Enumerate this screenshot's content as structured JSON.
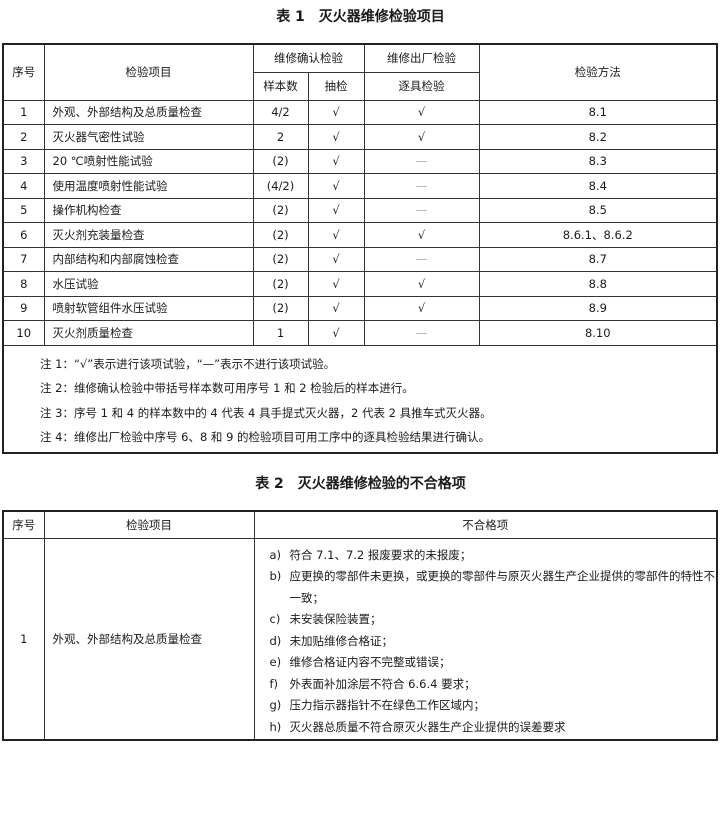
{
  "table1": {
    "title": "表 1　灭火器维修检验项目",
    "headers": {
      "index": "序号",
      "item": "检验项目",
      "confirm_group": "维修确认检验",
      "sample_count": "样本数",
      "sampling": "抽检",
      "release_group": "维修出厂检验",
      "each_unit": "逐具检验",
      "method": "检验方法"
    },
    "rows": [
      {
        "no": "1",
        "item": "外观、外部结构及总质量检查",
        "samples": "4/2",
        "sampling": "√",
        "each": "√",
        "method": "8.1"
      },
      {
        "no": "2",
        "item": "灭火器气密性试验",
        "samples": "2",
        "sampling": "√",
        "each": "√",
        "method": "8.2"
      },
      {
        "no": "3",
        "item": "20 ℃喷射性能试验",
        "samples": "(2)",
        "sampling": "√",
        "each": "—",
        "method": "8.3"
      },
      {
        "no": "4",
        "item": "使用温度喷射性能试验",
        "samples": "(4/2)",
        "sampling": "√",
        "each": "—",
        "method": "8.4"
      },
      {
        "no": "5",
        "item": "操作机构检查",
        "samples": "(2)",
        "sampling": "√",
        "each": "—",
        "method": "8.5"
      },
      {
        "no": "6",
        "item": "灭火剂充装量检查",
        "samples": "(2)",
        "sampling": "√",
        "each": "√",
        "method": "8.6.1、8.6.2"
      },
      {
        "no": "7",
        "item": "内部结构和内部腐蚀检查",
        "samples": "(2)",
        "sampling": "√",
        "each": "—",
        "method": "8.7"
      },
      {
        "no": "8",
        "item": "水压试验",
        "samples": "(2)",
        "sampling": "√",
        "each": "√",
        "method": "8.8"
      },
      {
        "no": "9",
        "item": "喷射软管组件水压试验",
        "samples": "(2)",
        "sampling": "√",
        "each": "√",
        "method": "8.9"
      },
      {
        "no": "10",
        "item": "灭火剂质量检查",
        "samples": "1",
        "sampling": "√",
        "each": "—",
        "method": "8.10"
      }
    ],
    "notes": [
      "注 1：“√”表示进行该项试验，“—”表示不进行该项试验。",
      "注 2：维修确认检验中带括号样本数可用序号 1 和 2 检验后的样本进行。",
      "注 3：序号 1 和 4 的样本数中的 4 代表 4 具手提式灭火器，2 代表 2 具推车式灭火器。",
      "注 4：维修出厂检验中序号 6、8 和 9 的检验项目可用工序中的逐具检验结果进行确认。"
    ]
  },
  "table2": {
    "title": "表 2　灭火器维修检验的不合格项",
    "headers": {
      "index": "序号",
      "item": "检验项目",
      "nonconform": "不合格项"
    },
    "rows": [
      {
        "no": "1",
        "item": "外观、外部结构及总质量检查",
        "entries": [
          {
            "k": "a)",
            "v": "符合 7.1、7.2 报废要求的未报废；"
          },
          {
            "k": "b)",
            "v": "应更换的零部件未更换，或更换的零部件与原灭火器生产企业提供的零部件的特性不一致；"
          },
          {
            "k": "c)",
            "v": "未安装保险装置；"
          },
          {
            "k": "d)",
            "v": "未加贴维修合格证；"
          },
          {
            "k": "e)",
            "v": "维修合格证内容不完整或错误；"
          },
          {
            "k": "f)",
            "v": "外表面补加涂层不符合 6.6.4 要求；"
          },
          {
            "k": "g)",
            "v": "压力指示器指针不在绿色工作区域内；"
          },
          {
            "k": "h)",
            "v": "灭火器总质量不符合原灭火器生产企业提供的误差要求"
          }
        ]
      }
    ]
  }
}
